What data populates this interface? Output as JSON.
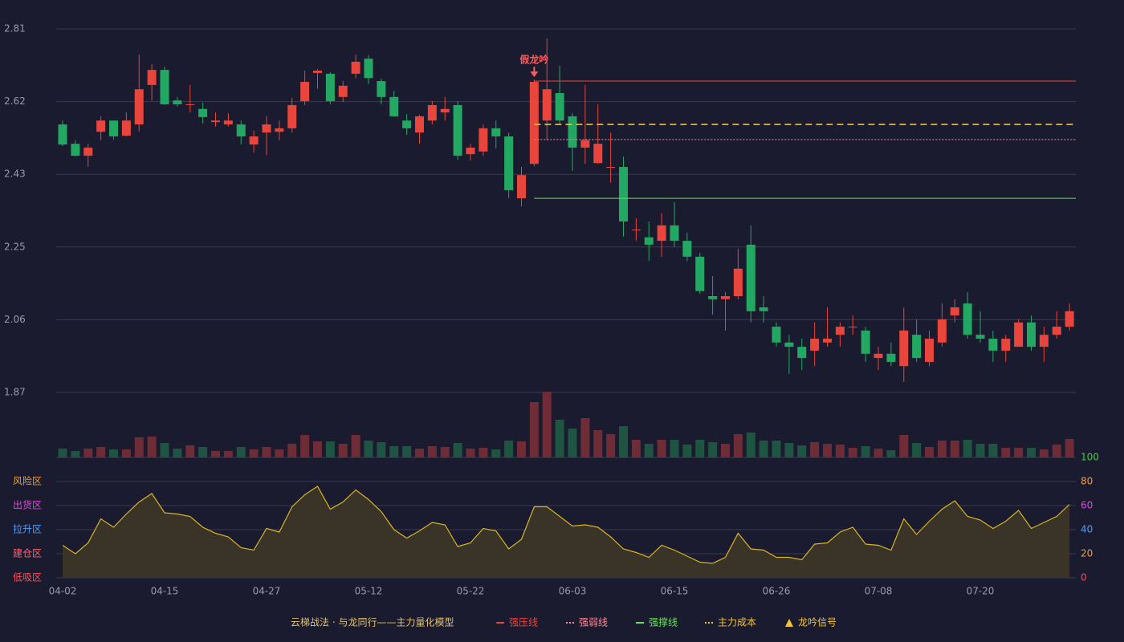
{
  "chart_data": {
    "type": "candlestick",
    "categories": [
      "04-02",
      null,
      null,
      null,
      null,
      null,
      null,
      null,
      "04-15",
      null,
      null,
      null,
      null,
      null,
      null,
      null,
      "04-27",
      null,
      null,
      null,
      null,
      null,
      null,
      null,
      "05-12",
      null,
      null,
      null,
      null,
      null,
      null,
      null,
      "05-22",
      null,
      null,
      null,
      null,
      null,
      null,
      null,
      "06-03",
      null,
      null,
      null,
      null,
      null,
      null,
      null,
      "06-15",
      null,
      null,
      null,
      null,
      null,
      null,
      null,
      "06-26",
      null,
      null,
      null,
      null,
      null,
      null,
      null,
      "07-08",
      null,
      null,
      null,
      null,
      null,
      null,
      null,
      "07-20",
      null,
      null,
      null,
      null,
      null,
      null,
      null
    ],
    "open": [
      2.563,
      2.513,
      2.482,
      2.544,
      2.573,
      2.534,
      2.563,
      2.665,
      2.704,
      2.625,
      2.613,
      2.603,
      2.569,
      2.563,
      2.563,
      2.511,
      2.542,
      2.544,
      2.553,
      2.623,
      2.696,
      2.694,
      2.634,
      2.694,
      2.733,
      2.675,
      2.634,
      2.573,
      2.542,
      2.573,
      2.594,
      2.613,
      2.486,
      2.493,
      2.553,
      2.532,
      2.372,
      2.461,
      2.573,
      2.644,
      2.584,
      2.503,
      2.463,
      2.451,
      2.453,
      2.289,
      2.271,
      2.262,
      2.302,
      2.262,
      2.221,
      2.119,
      2.111,
      2.119,
      2.252,
      2.09,
      2.04,
      1.999,
      1.988,
      1.978,
      1.999,
      2.019,
      2.038,
      2.03,
      1.959,
      1.97,
      1.938,
      2.019,
      1.949,
      1.999,
      2.069,
      2.1,
      2.019,
      2.009,
      1.978,
      1.988,
      2.051,
      1.988,
      2.019,
      2.04
    ],
    "high": [
      2.573,
      2.522,
      2.513,
      2.584,
      2.573,
      2.594,
      2.744,
      2.719,
      2.712,
      2.634,
      2.665,
      2.619,
      2.594,
      2.592,
      2.573,
      2.547,
      2.584,
      2.573,
      2.632,
      2.702,
      2.706,
      2.698,
      2.675,
      2.744,
      2.742,
      2.681,
      2.65,
      2.59,
      2.588,
      2.623,
      2.634,
      2.623,
      2.513,
      2.563,
      2.573,
      2.542,
      2.453,
      2.679,
      2.785,
      2.715,
      2.592,
      2.665,
      2.615,
      2.542,
      2.48,
      2.32,
      2.312,
      2.333,
      2.362,
      2.283,
      2.231,
      2.171,
      2.129,
      2.242,
      2.302,
      2.119,
      2.051,
      2.019,
      2.009,
      2.051,
      2.09,
      2.051,
      2.069,
      2.04,
      1.988,
      1.999,
      2.09,
      2.059,
      2.03,
      2.1,
      2.111,
      2.129,
      2.08,
      2.03,
      2.019,
      2.059,
      2.069,
      2.04,
      2.08,
      2.1
    ],
    "low": [
      2.507,
      2.48,
      2.453,
      2.522,
      2.524,
      2.532,
      2.544,
      2.625,
      2.613,
      2.609,
      2.594,
      2.565,
      2.557,
      2.557,
      2.511,
      2.49,
      2.484,
      2.522,
      2.542,
      2.613,
      2.656,
      2.615,
      2.621,
      2.683,
      2.667,
      2.615,
      2.582,
      2.536,
      2.513,
      2.563,
      2.573,
      2.472,
      2.47,
      2.482,
      2.501,
      2.372,
      2.351,
      2.455,
      2.522,
      2.563,
      2.443,
      2.461,
      2.461,
      2.412,
      2.273,
      2.262,
      2.21,
      2.221,
      2.246,
      2.21,
      2.125,
      2.071,
      2.03,
      2.111,
      2.051,
      2.051,
      1.988,
      1.918,
      1.928,
      1.938,
      1.988,
      1.988,
      2.019,
      1.949,
      1.928,
      1.938,
      1.897,
      1.949,
      1.938,
      1.988,
      2.051,
      2.009,
      1.999,
      1.949,
      1.949,
      1.988,
      1.978,
      1.949,
      2.009,
      2.03
    ],
    "close": [
      2.511,
      2.482,
      2.503,
      2.573,
      2.532,
      2.573,
      2.654,
      2.704,
      2.615,
      2.615,
      2.615,
      2.582,
      2.573,
      2.573,
      2.532,
      2.532,
      2.563,
      2.553,
      2.613,
      2.673,
      2.702,
      2.623,
      2.663,
      2.725,
      2.683,
      2.634,
      2.584,
      2.553,
      2.584,
      2.613,
      2.603,
      2.482,
      2.503,
      2.553,
      2.532,
      2.393,
      2.432,
      2.673,
      2.654,
      2.573,
      2.503,
      2.522,
      2.513,
      2.453,
      2.312,
      2.291,
      2.252,
      2.302,
      2.262,
      2.221,
      2.132,
      2.111,
      2.119,
      2.19,
      2.08,
      2.08,
      1.999,
      1.988,
      1.959,
      2.009,
      2.009,
      2.04,
      2.04,
      1.97,
      1.97,
      1.949,
      2.03,
      1.959,
      2.009,
      2.059,
      2.09,
      2.019,
      2.009,
      1.978,
      2.009,
      2.051,
      1.988,
      2.019,
      2.04,
      2.08
    ],
    "volume": [
      11,
      8,
      11,
      13,
      10,
      10,
      25,
      26,
      18,
      11,
      15,
      13,
      8,
      8,
      13,
      10,
      13,
      10,
      17,
      28,
      20,
      20,
      17,
      28,
      21,
      19,
      14,
      14,
      11,
      14,
      13,
      18,
      11,
      12,
      10,
      21,
      20,
      69,
      82,
      47,
      36,
      49,
      34,
      29,
      39,
      22,
      17,
      22,
      22,
      16,
      22,
      19,
      17,
      29,
      31,
      21,
      21,
      18,
      15,
      19,
      17,
      16,
      12,
      14,
      11,
      9,
      28,
      18,
      13,
      21,
      21,
      22,
      17,
      17,
      12,
      12,
      12,
      10,
      16,
      23
    ],
    "up_color": "#e8453c",
    "down_color": "#22a862",
    "volume_up_color": "#6e2c36",
    "volume_down_color": "#1f5442",
    "ylim": [
      1.87,
      2.81
    ],
    "yticks": [
      1.87,
      {
        "value": 2.058,
        "label": "2.06"
      },
      {
        "value": 2.246,
        "label": "2.25"
      },
      {
        "value": 2.434,
        "label": "2.43"
      },
      {
        "value": 2.622,
        "label": "2.62"
      },
      2.81
    ],
    "grid": true,
    "levels": [
      {
        "name": "强压线",
        "value": 2.675,
        "color": "#e8453c",
        "dash": "solid",
        "start": 37
      },
      {
        "name": "强弱线",
        "value": 2.524,
        "color": "#ff8a9a",
        "dash": "dotted",
        "start": 37
      },
      {
        "name": "强撑线",
        "value": 2.372,
        "color": "#66e05a",
        "dash": "solid",
        "start": 37
      },
      {
        "name": "主力成本",
        "value": 2.563,
        "color": "#f2c230",
        "dash": "dashed",
        "start": 37
      }
    ],
    "signal": {
      "name": "龙吟信号",
      "label": "假龙吟",
      "index": 37,
      "color": "#ff5a5a",
      "legend_color": "#f2c230"
    },
    "indicator": {
      "values": [
        27,
        20,
        29,
        49,
        42,
        53,
        63,
        70,
        54,
        53,
        51,
        42,
        37,
        34,
        25,
        23,
        41,
        38,
        59,
        69,
        76,
        57,
        63,
        73,
        65,
        55,
        40,
        33,
        39,
        46,
        44,
        26,
        29,
        41,
        39,
        24,
        32,
        59,
        59,
        51,
        43,
        44,
        42,
        34,
        24,
        21,
        17,
        27,
        23,
        18,
        13,
        12,
        17,
        37,
        24,
        23,
        17,
        17,
        15,
        28,
        29,
        38,
        42,
        28,
        27,
        23,
        49,
        36,
        47,
        57,
        64,
        51,
        48,
        41,
        47,
        56,
        41,
        46,
        51,
        61
      ],
      "color": "#d9b422",
      "fill": "#3a3428",
      "ylim": [
        0,
        100
      ],
      "ticks": [
        0,
        20,
        40,
        60,
        80,
        100
      ],
      "tick_colors": [
        "#ff4a5a",
        "#ff9a30",
        "#4aa0ff",
        "#e048e0",
        "#ff9a30",
        "#3ccf3c"
      ],
      "zones": [
        {
          "name": "低吸区",
          "value": 0,
          "color": "#ff4a5a"
        },
        {
          "name": "建仓区",
          "value": 20,
          "color": "#ff6070"
        },
        {
          "name": "拉升区",
          "value": 40,
          "color": "#4aa0ff"
        },
        {
          "name": "出货区",
          "value": 60,
          "color": "#e048e0"
        },
        {
          "name": "风险区",
          "value": 80,
          "color": "#f0a030"
        }
      ]
    },
    "legend_title": "云梯战法 · 与龙同行——主力量化模型"
  }
}
